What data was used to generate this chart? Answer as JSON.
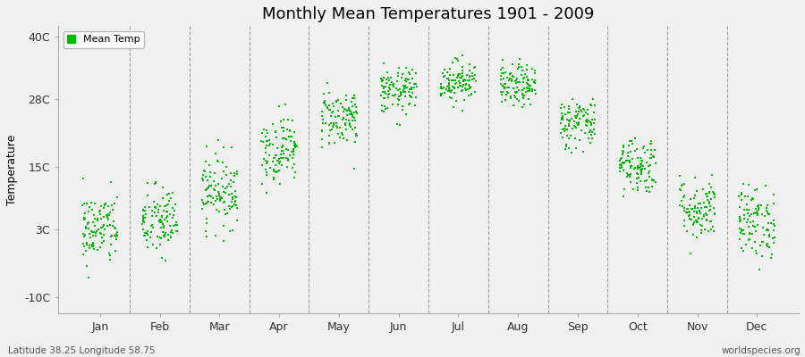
{
  "title": "Monthly Mean Temperatures 1901 - 2009",
  "ylabel": "Temperature",
  "yticks": [
    -10,
    3,
    15,
    28,
    40
  ],
  "ytick_labels": [
    "-10C",
    "3C",
    "15C",
    "28C",
    "40C"
  ],
  "ylim": [
    -13,
    42
  ],
  "months": [
    "Jan",
    "Feb",
    "Mar",
    "Apr",
    "May",
    "Jun",
    "Jul",
    "Aug",
    "Sep",
    "Oct",
    "Nov",
    "Dec"
  ],
  "background_color": "#f0f0f0",
  "plot_bg_color": "#f0f0f0",
  "dot_color": "#00bb00",
  "dot_size": 2.5,
  "legend_label": "Mean Temp",
  "subtitle_left": "Latitude 38.25 Longitude 58.75",
  "subtitle_right": "worldspecies.org",
  "n_years": 109,
  "mean_temps": [
    3.2,
    4.5,
    10.5,
    18.5,
    24.5,
    29.5,
    31.5,
    30.5,
    23.5,
    15.5,
    7.0,
    4.5
  ],
  "std_temps": [
    3.5,
    3.5,
    3.5,
    3.2,
    2.8,
    2.2,
    2.0,
    2.0,
    2.5,
    2.8,
    3.0,
    3.5
  ],
  "random_seed": 42,
  "figwidth": 9.0,
  "figheight": 4.0,
  "dpi": 100
}
